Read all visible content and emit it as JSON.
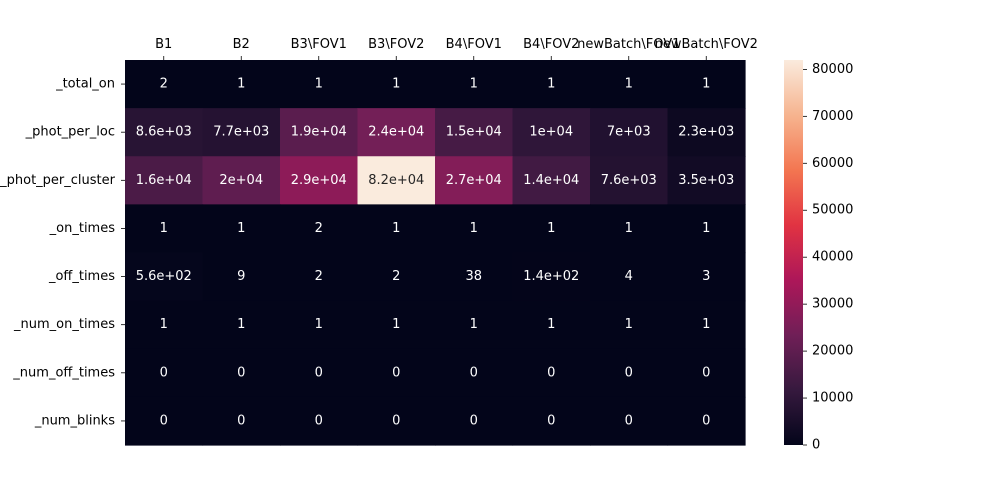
{
  "chart_data": {
    "type": "heatmap",
    "title": "",
    "xlabel": "",
    "ylabel": "",
    "x_labels": [
      "B1",
      "B2",
      "B3\\FOV1",
      "B3\\FOV2",
      "B4\\FOV1",
      "B4\\FOV2",
      "newBatch\\FOV1",
      "newBatch\\FOV2"
    ],
    "y_labels": [
      "_total_on",
      "_phot_per_loc",
      "_phot_per_cluster",
      "_on_times",
      "_off_times",
      "_num_on_times",
      "_num_off_times",
      "_num_blinks"
    ],
    "values": [
      [
        2,
        1,
        1,
        1,
        1,
        1,
        1,
        1
      ],
      [
        8600,
        7700,
        19000,
        24000,
        15000,
        10000,
        7000,
        2300
      ],
      [
        16000,
        20000,
        29000,
        82000,
        27000,
        14000,
        7600,
        3500
      ],
      [
        1,
        1,
        2,
        1,
        1,
        1,
        1,
        1
      ],
      [
        560,
        9,
        2,
        2,
        38,
        140,
        4,
        3
      ],
      [
        1,
        1,
        1,
        1,
        1,
        1,
        1,
        1
      ],
      [
        0,
        0,
        0,
        0,
        0,
        0,
        0,
        0
      ],
      [
        0,
        0,
        0,
        0,
        0,
        0,
        0,
        0
      ]
    ],
    "annotations": [
      [
        "2",
        "1",
        "1",
        "1",
        "1",
        "1",
        "1",
        "1"
      ],
      [
        "8.6e+03",
        "7.7e+03",
        "1.9e+04",
        "2.4e+04",
        "1.5e+04",
        "1e+04",
        "7e+03",
        "2.3e+03"
      ],
      [
        "1.6e+04",
        "2e+04",
        "2.9e+04",
        "8.2e+04",
        "2.7e+04",
        "1.4e+04",
        "7.6e+03",
        "3.5e+03"
      ],
      [
        "1",
        "1",
        "2",
        "1",
        "1",
        "1",
        "1",
        "1"
      ],
      [
        "5.6e+02",
        "9",
        "2",
        "2",
        "38",
        "1.4e+02",
        "4",
        "3"
      ],
      [
        "1",
        "1",
        "1",
        "1",
        "1",
        "1",
        "1",
        "1"
      ],
      [
        "0",
        "0",
        "0",
        "0",
        "0",
        "0",
        "0",
        "0"
      ],
      [
        "0",
        "0",
        "0",
        "0",
        "0",
        "0",
        "0",
        "0"
      ]
    ],
    "colorbar": {
      "vmin": 0,
      "vmax": 82000,
      "ticks": [
        0,
        10000,
        20000,
        30000,
        40000,
        50000,
        60000,
        70000,
        80000
      ],
      "tick_labels": [
        "0",
        "10000",
        "20000",
        "30000",
        "40000",
        "50000",
        "60000",
        "70000",
        "80000"
      ],
      "colormap": "rocket",
      "colormap_stops": [
        "#03051a",
        "#36193e",
        "#701f57",
        "#ad1759",
        "#e13342",
        "#f37651",
        "#f6b48f",
        "#faebdd"
      ]
    },
    "x_tick_position": "top",
    "colors": {
      "text_on_dark": "#ffffff",
      "text_on_light": "#262626"
    }
  }
}
